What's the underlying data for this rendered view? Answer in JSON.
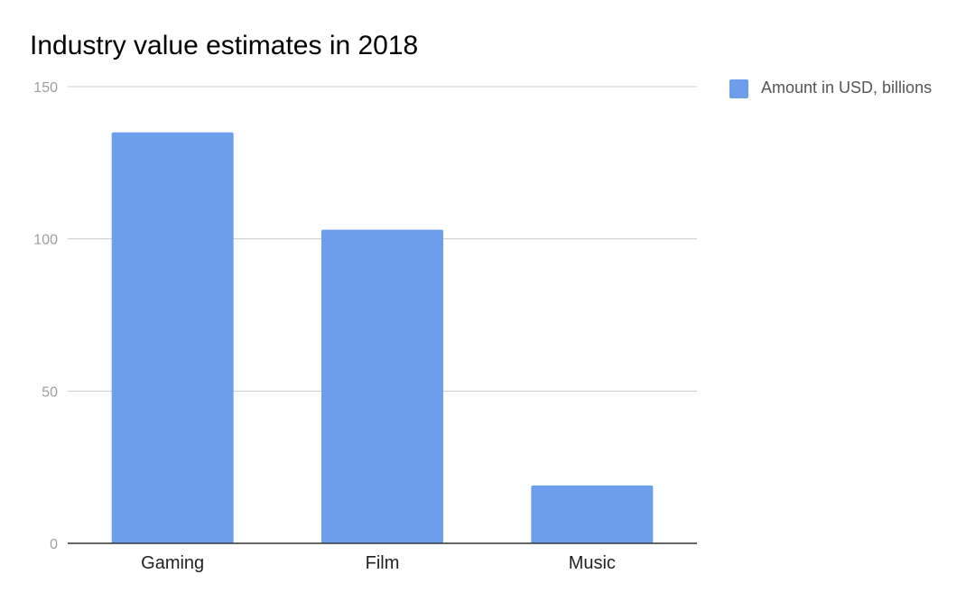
{
  "chart_data": {
    "type": "bar",
    "title": "Industry value estimates in 2018",
    "categories": [
      "Gaming",
      "Film",
      "Music"
    ],
    "series": [
      {
        "name": "Amount in USD, billions",
        "values": [
          135,
          103,
          19
        ],
        "color": "#6d9eeb"
      }
    ],
    "ylim": [
      0,
      150
    ],
    "yticks": [
      "0",
      "50",
      "100",
      "150"
    ],
    "grid": true,
    "legend_position": "right",
    "colors": {
      "gridline": "#cccccc",
      "axis": "#333333",
      "bar": "#6d9eeb"
    }
  }
}
